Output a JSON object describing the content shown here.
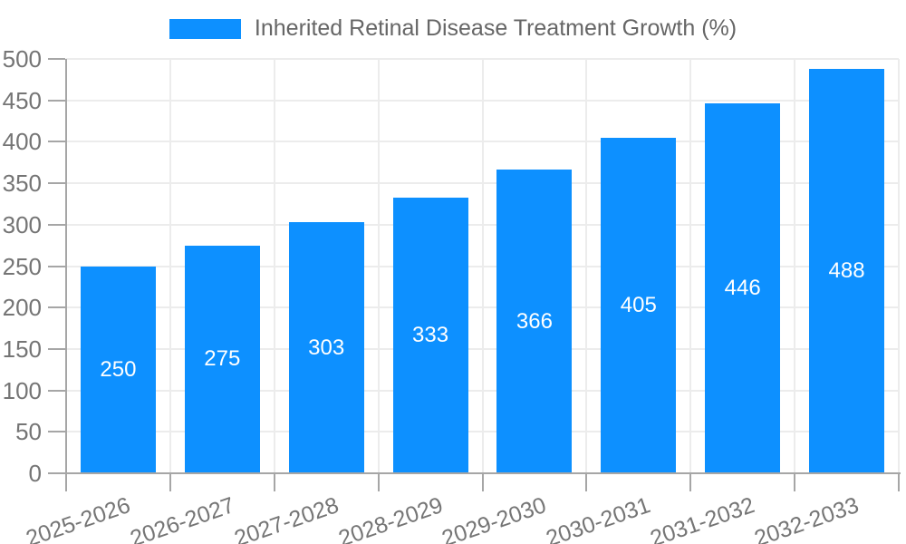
{
  "chart_data": {
    "type": "bar",
    "title": "Inherited Retinal Disease Treatment Growth (%)",
    "categories": [
      "2025-2026",
      "2026-2027",
      "2027-2028",
      "2028-2029",
      "2029-2030",
      "2030-2031",
      "2031-2032",
      "2032-2033"
    ],
    "values": [
      250,
      275,
      303,
      333,
      366,
      405,
      446,
      488
    ],
    "xlabel": "",
    "ylabel": "",
    "ylim": [
      0,
      500
    ],
    "yticks": [
      0,
      50,
      100,
      150,
      200,
      250,
      300,
      350,
      400,
      450,
      500
    ],
    "grid": true,
    "legend_position": "top-center",
    "bar_labels_visible": true,
    "colors": {
      "bar": "#0d90ff",
      "grid": "#ececec",
      "axis": "#a6a6a6",
      "tick_text": "#757575",
      "legend_text": "#666666",
      "bar_label": "#ffffff",
      "background": "#ffffff"
    }
  }
}
